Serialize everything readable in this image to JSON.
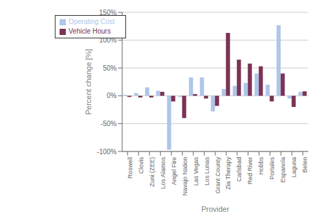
{
  "chart_data": {
    "type": "bar",
    "xlabel": "Provider",
    "ylabel": "Percent change [%]",
    "categories": [
      "Roswell",
      "Clovis",
      "Zuni (ZEE)",
      "Los Alamos",
      "Angel Fire",
      "Navajo Nation",
      "Las Vegas",
      "Los Lunas",
      "Grant County",
      "Zia Therapy",
      "Carlsbad",
      "Red River",
      "Hobbs",
      "Portales",
      "Espanola",
      "Laguna",
      "Belen"
    ],
    "series": [
      {
        "name": "Operating Cost",
        "color": "#aec6e8",
        "values": [
          2,
          5,
          15,
          9,
          -97,
          -2,
          33,
          33,
          -28,
          12,
          18,
          23,
          40,
          20,
          127,
          -5,
          7
        ]
      },
      {
        "name": "Vehicle Hours",
        "color": "#7b3355",
        "values": [
          -2,
          -3,
          -3,
          7,
          -10,
          -40,
          3,
          -5,
          -18,
          113,
          65,
          58,
          53,
          -10,
          40,
          -20,
          8
        ]
      }
    ],
    "ylim": [
      -100,
      150
    ],
    "yticks": [
      {
        "value": -100,
        "label": "-100%"
      },
      {
        "value": -50,
        "label": "-50%"
      },
      {
        "value": 0,
        "label": "0%"
      },
      {
        "value": 50,
        "label": "50%"
      },
      {
        "value": 100,
        "label": "100%"
      },
      {
        "value": 150,
        "label": "150%"
      }
    ],
    "grid": true,
    "legend": "upper left"
  }
}
